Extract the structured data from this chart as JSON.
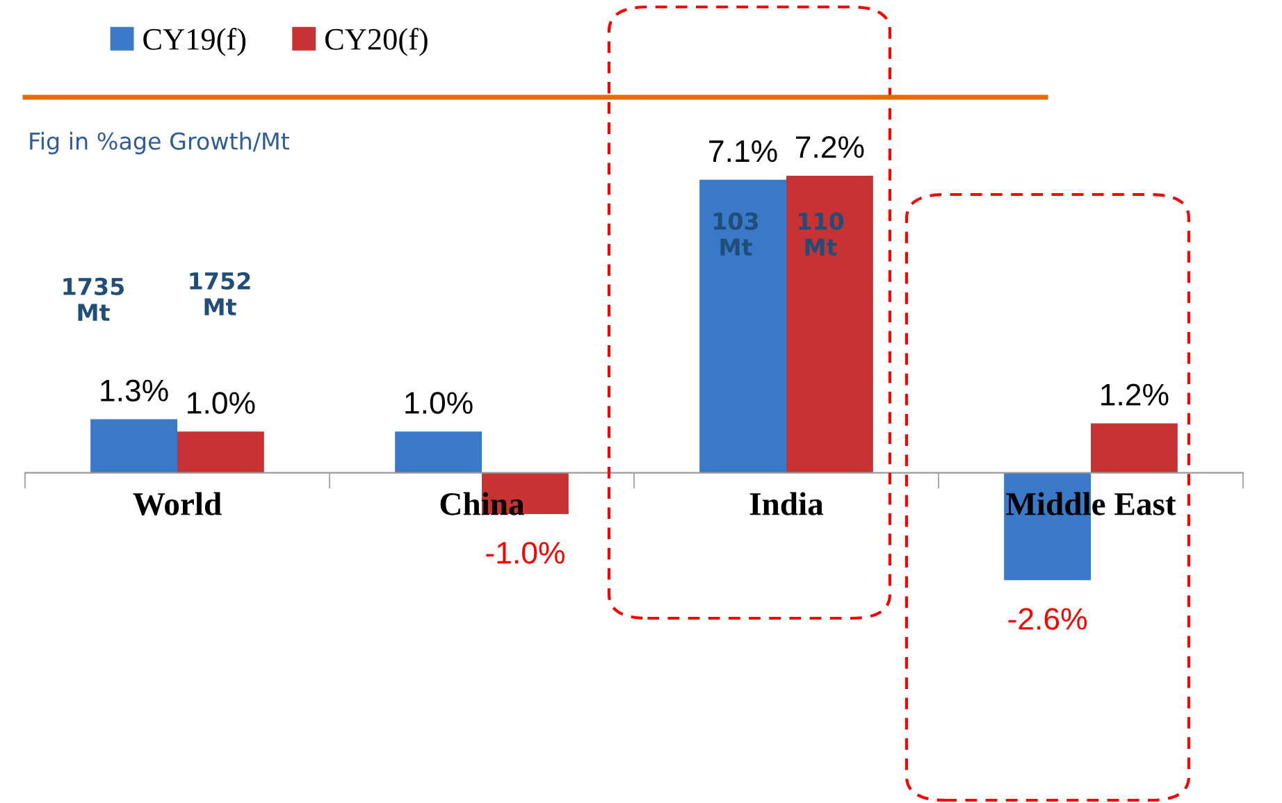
{
  "chart_data": {
    "type": "bar",
    "categories": [
      "World",
      "China",
      "India",
      "Middle East"
    ],
    "series": [
      {
        "name": "CY19(f)",
        "color": "#3a78c8",
        "values": [
          1.3,
          1.0,
          7.1,
          -2.6
        ],
        "value_labels": [
          "1.3%",
          "1.0%",
          "7.1%",
          "-2.6%"
        ]
      },
      {
        "name": "CY20(f)",
        "color": "#c83232",
        "values": [
          1.0,
          -1.0,
          7.2,
          1.2
        ],
        "value_labels": [
          "1.0%",
          "-1.0%",
          "7.2%",
          "1.2%"
        ]
      }
    ],
    "legend": "top left",
    "grid": false,
    "annotations": [
      "Fig in %age Growth/Mt",
      "1735\nMt",
      "1752\nMt",
      "103\nMt",
      "110\nMt"
    ]
  }
}
